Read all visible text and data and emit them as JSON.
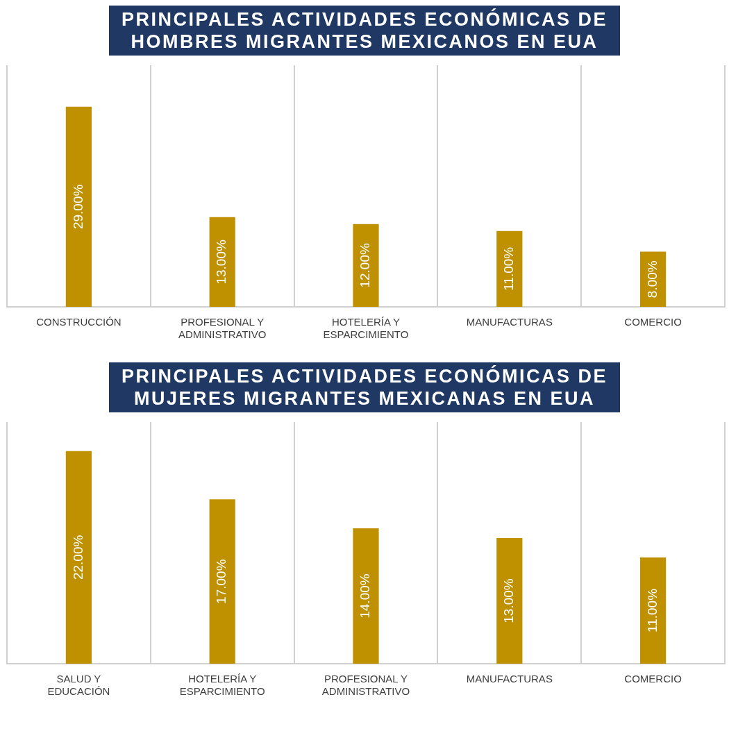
{
  "chart_data": [
    {
      "type": "bar",
      "title": "PRINCIPALES ACTIVIDADES ECONÓMICAS DE HOMBRES MIGRANTES MEXICANOS EN EUA",
      "categories": [
        "CONSTRUCCIÓN",
        "PROFESIONAL Y ADMINISTRATIVO",
        "HOTELERÍA Y ESPARCIMIENTO",
        "MANUFACTURAS",
        "COMERCIO"
      ],
      "values": [
        29,
        13,
        12,
        11,
        8
      ],
      "value_labels": [
        "29.00%",
        "13.00%",
        "12.00%",
        "11.00%",
        "8.00%"
      ],
      "color": "#bf9000",
      "ylim": [
        0,
        35
      ],
      "tick_labels": "x",
      "grid": "x",
      "legend": false
    },
    {
      "type": "bar",
      "title": "PRINCIPALES ACTIVIDADES ECONÓMICAS DE MUJERES MIGRANTES MEXICANAS EN EUA",
      "categories": [
        "SALUD Y EDUCACIÓN",
        "HOTELERÍA Y ESPARCIMIENTO",
        "PROFESIONAL Y ADMINISTRATIVO",
        "MANUFACTURAS",
        "COMERCIO"
      ],
      "values": [
        22,
        17,
        14,
        13,
        11
      ],
      "value_labels": [
        "22.00%",
        "17.00%",
        "14.00%",
        "13.00%",
        "11.00%"
      ],
      "color": "#bf9000",
      "ylim": [
        0,
        25
      ],
      "tick_labels": "x",
      "grid": "x",
      "legend": false
    }
  ]
}
